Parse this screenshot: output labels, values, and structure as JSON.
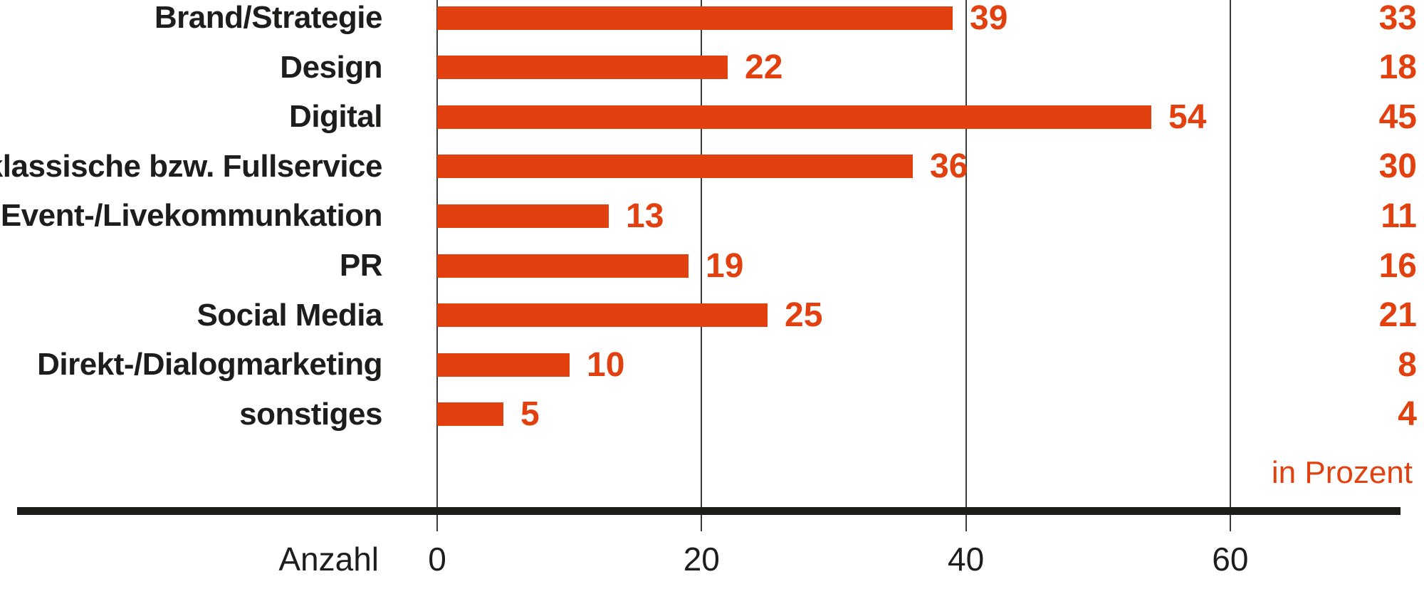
{
  "chart_data": {
    "type": "bar",
    "orientation": "horizontal",
    "title": "",
    "xlabel": "Anzahl",
    "right_column_label": "in Prozent",
    "x_ticks": [
      0,
      20,
      40,
      60
    ],
    "xlim": [
      0,
      74
    ],
    "grid": "vertical",
    "categories": [
      "Brand/Strategie",
      "Design",
      "Digital",
      "klassische bzw. Fullservice",
      "Event-/Livekommunkation",
      "PR",
      "Social Media",
      "Direkt-/Dialogmarketing",
      "sonstiges"
    ],
    "series": [
      {
        "name": "Anzahl",
        "values": [
          39,
          22,
          54,
          36,
          13,
          19,
          25,
          10,
          5
        ]
      },
      {
        "name": "in Prozent",
        "values": [
          33,
          18,
          45,
          30,
          11,
          16,
          21,
          8,
          4
        ]
      }
    ]
  },
  "colors": {
    "bar": "#e2400f",
    "accent_text": "#e2400f",
    "text": "#1d1d1b",
    "gridline": "#3b3b39",
    "baseline": "#1c1c1a"
  }
}
